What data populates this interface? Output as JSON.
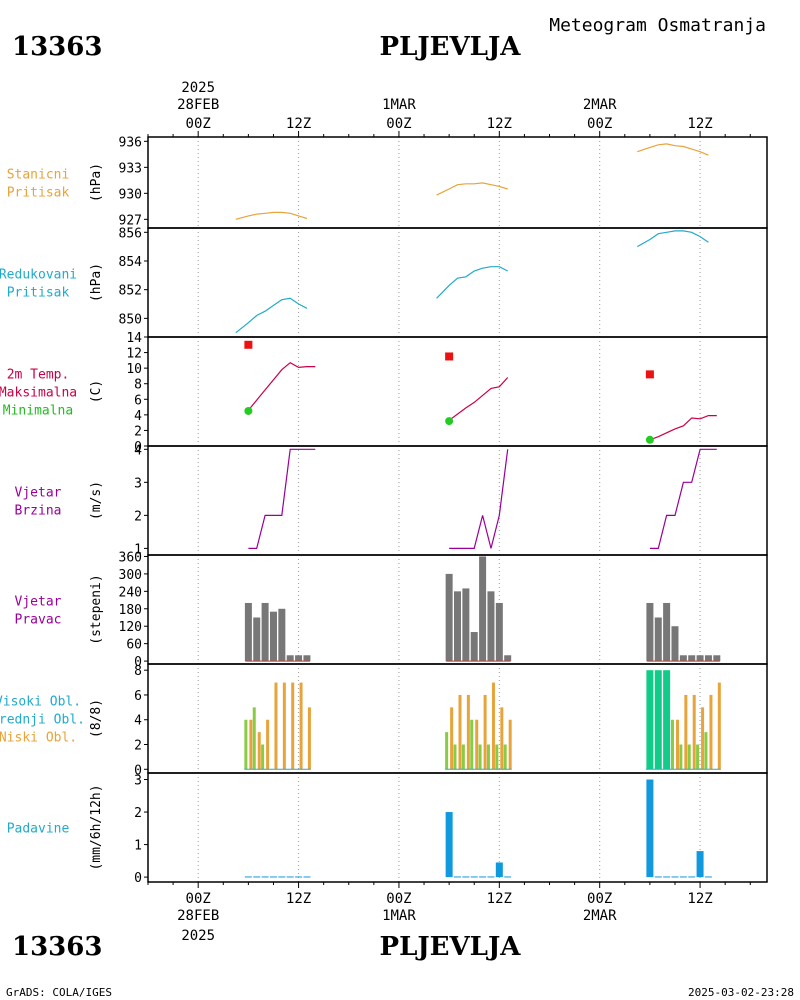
{
  "header": {
    "station_id": "13363",
    "station_name": "PLJEVLJA",
    "product": "Meteogram Osmatranja",
    "footer_left": "GrADS: COLA/IGES",
    "footer_right": "2025-03-02-23:28"
  },
  "time_axis": {
    "top_year": "2025",
    "bottom_year": "2025",
    "major": [
      {
        "date": "28FEB",
        "hour": "00Z"
      },
      {
        "date": "",
        "hour": "12Z"
      },
      {
        "date": "1MAR",
        "hour": "00Z"
      },
      {
        "date": "",
        "hour": "12Z"
      },
      {
        "date": "2MAR",
        "hour": "00Z"
      },
      {
        "date": "",
        "hour": "12Z"
      }
    ]
  },
  "chart_data": [
    {
      "id": "station_pressure",
      "type": "line",
      "title_lines": [
        "Stanicni",
        "Pritisak"
      ],
      "ylabel": "(hPa)",
      "title_color": "#e8a33a",
      "color": "#e8a33a",
      "ylim": [
        926,
        936.5
      ],
      "ticks": [
        927,
        930,
        933,
        936
      ],
      "x_unit": "hours from 28FEB 00Z",
      "series": [
        {
          "x": [
            4.5,
            6,
            7,
            8,
            9,
            10,
            11,
            12,
            13
          ],
          "values": [
            927.0,
            927.4,
            927.6,
            927.7,
            927.8,
            927.8,
            927.7,
            927.4,
            927.1
          ]
        },
        {
          "x": [
            28.5,
            30,
            31,
            32,
            33,
            34,
            35,
            36,
            37
          ],
          "values": [
            929.8,
            930.5,
            931.0,
            931.1,
            931.1,
            931.2,
            931.0,
            930.8,
            930.5
          ]
        },
        {
          "x": [
            52.5,
            54,
            55,
            56,
            57,
            58,
            59,
            60,
            61
          ],
          "values": [
            934.8,
            935.3,
            935.6,
            935.7,
            935.5,
            935.4,
            935.1,
            934.8,
            934.4
          ]
        }
      ]
    },
    {
      "id": "reduced_pressure",
      "type": "line",
      "title_lines": [
        "Redukovani",
        "Pritisak"
      ],
      "ylabel": "(hPa)",
      "title_color": "#22aacc",
      "color": "#22aacc",
      "ylim": [
        848.7,
        856.3
      ],
      "ticks": [
        850,
        852,
        854,
        856
      ],
      "x_unit": "hours from 28FEB 00Z",
      "series": [
        {
          "x": [
            4.5,
            6,
            7,
            8,
            9,
            10,
            11,
            12,
            13
          ],
          "values": [
            849.0,
            849.7,
            850.2,
            850.5,
            850.9,
            851.3,
            851.4,
            851.0,
            850.7
          ]
        },
        {
          "x": [
            28.5,
            30,
            31,
            32,
            33,
            34,
            35,
            36,
            37
          ],
          "values": [
            851.4,
            852.3,
            852.8,
            852.9,
            853.3,
            853.5,
            853.6,
            853.6,
            853.3
          ]
        },
        {
          "x": [
            52.5,
            54,
            55,
            56,
            57,
            58,
            59,
            60,
            61
          ],
          "values": [
            855.0,
            855.5,
            855.9,
            856.0,
            856.1,
            856.1,
            856.0,
            855.7,
            855.3
          ]
        }
      ]
    },
    {
      "id": "temperature",
      "type": "line",
      "title_lines": [
        "2m Temp.",
        "Maksimalna",
        "Minimalna"
      ],
      "title_colors": [
        "#cc0044",
        "#cc0044",
        "#22bb22"
      ],
      "ylabel": "(C)",
      "color": "#cc0044",
      "ylim": [
        0,
        14
      ],
      "ticks": [
        0,
        2,
        4,
        6,
        8,
        10,
        12,
        14
      ],
      "x_unit": "hours from 28FEB 00Z",
      "series": [
        {
          "x": [
            6,
            7,
            8,
            9,
            10,
            11,
            12,
            13,
            14
          ],
          "values": [
            4.6,
            5.9,
            7.2,
            8.5,
            9.8,
            10.7,
            10.1,
            10.2,
            10.2
          ]
        },
        {
          "x": [
            30,
            31,
            32,
            33,
            34,
            35,
            36,
            37
          ],
          "values": [
            3.3,
            4.1,
            4.9,
            5.6,
            6.5,
            7.4,
            7.6,
            8.8
          ]
        },
        {
          "x": [
            54,
            55,
            56,
            57,
            58,
            59,
            60,
            61,
            62
          ],
          "values": [
            0.8,
            1.2,
            1.7,
            2.2,
            2.6,
            3.6,
            3.5,
            3.9,
            3.9
          ]
        }
      ],
      "maxima": {
        "x": [
          6,
          30,
          54
        ],
        "values": [
          13.0,
          11.5,
          9.2
        ],
        "color": "#ee1111"
      },
      "minima": {
        "x": [
          6,
          30,
          54
        ],
        "values": [
          4.5,
          3.2,
          0.8
        ],
        "color": "#22cc22"
      }
    },
    {
      "id": "wind_speed",
      "type": "line",
      "title_lines": [
        "Vjetar",
        "Brzina"
      ],
      "ylabel": "(m/s)",
      "title_color": "#990099",
      "color": "#990099",
      "ylim": [
        0.8,
        4.1
      ],
      "ticks": [
        1,
        2,
        3,
        4
      ],
      "x_unit": "hours from 28FEB 00Z",
      "series": [
        {
          "x": [
            6,
            7,
            8,
            9,
            10,
            11,
            12,
            13,
            14
          ],
          "values": [
            1,
            1,
            2,
            2,
            2,
            4,
            4,
            4,
            4
          ]
        },
        {
          "x": [
            30,
            31,
            32,
            33,
            34,
            35,
            36,
            37
          ],
          "values": [
            1,
            1,
            1,
            1,
            2,
            1,
            2,
            4
          ]
        },
        {
          "x": [
            54,
            55,
            56,
            57,
            58,
            59,
            60,
            61,
            62
          ],
          "values": [
            1,
            1,
            2,
            2,
            3,
            3,
            4,
            4,
            4
          ]
        }
      ]
    },
    {
      "id": "wind_direction",
      "type": "bar",
      "title_lines": [
        "Vjetar",
        "Pravac"
      ],
      "ylabel": "(stepeni)",
      "title_color": "#990099",
      "color": "#777777",
      "ylim": [
        -10,
        365
      ],
      "ticks": [
        0,
        60,
        120,
        180,
        240,
        300,
        360
      ],
      "x_unit": "hours from 28FEB 00Z",
      "series": [
        {
          "x": [
            6,
            7,
            8,
            9,
            10,
            11,
            12,
            13
          ],
          "values": [
            200,
            150,
            200,
            170,
            180,
            20,
            20,
            20
          ]
        },
        {
          "x": [
            30,
            31,
            32,
            33,
            34,
            35,
            36,
            37
          ],
          "values": [
            300,
            240,
            250,
            100,
            360,
            240,
            200,
            20
          ]
        },
        {
          "x": [
            54,
            55,
            56,
            57,
            58,
            59,
            60,
            61,
            62
          ],
          "values": [
            200,
            150,
            200,
            120,
            20,
            20,
            20,
            20,
            20
          ]
        }
      ]
    },
    {
      "id": "clouds",
      "type": "bar",
      "title_lines": [
        "Visoki Obl.",
        "Srednji Obl.",
        "Niski Obl."
      ],
      "title_colors": [
        "#22aacc",
        "#22aacc",
        "#e8a33a"
      ],
      "ylabel": "(8/8)",
      "ylim": [
        -0.3,
        8.5
      ],
      "ticks": [
        0,
        2,
        4,
        6,
        8
      ],
      "x_unit": "hours from 28FEB 00Z",
      "series": [
        {
          "name": "Visoki Obl.",
          "color": "#11cc88",
          "x": [
            54,
            55,
            56
          ],
          "values": [
            8,
            8,
            8
          ]
        },
        {
          "name": "Srednji Obl.",
          "color": "#88cc44",
          "x": [
            6,
            7,
            8,
            30,
            31,
            32,
            33,
            34,
            35,
            36,
            37,
            57,
            58,
            59,
            60,
            61
          ],
          "values": [
            4,
            5,
            2,
            3,
            2,
            2,
            4,
            2,
            2,
            2,
            2,
            4,
            2,
            2,
            2,
            3
          ]
        },
        {
          "name": "Niski Obl.",
          "color": "#e8a33a",
          "x": [
            6,
            7,
            8,
            9,
            10,
            11,
            12,
            13,
            30,
            31,
            32,
            33,
            34,
            35,
            36,
            37,
            57,
            58,
            59,
            60,
            61,
            62
          ],
          "values": [
            4,
            3,
            4,
            7,
            7,
            7,
            7,
            5,
            5,
            6,
            6,
            4,
            6,
            7,
            5,
            4,
            4,
            6,
            6,
            5,
            6,
            7
          ]
        }
      ]
    },
    {
      "id": "precipitation",
      "type": "bar",
      "title_lines": [
        "Padavine"
      ],
      "ylabel": "(mm/6h/12h)",
      "title_color": "#22aacc",
      "color": "#1199dd",
      "ylim": [
        -0.15,
        3.2
      ],
      "ticks": [
        0,
        1,
        2,
        3
      ],
      "x_unit": "hours from 28FEB 00Z",
      "series": [
        {
          "x": [
            6,
            7,
            8,
            9,
            10,
            11,
            12,
            13,
            30,
            31,
            32,
            33,
            34,
            35,
            36,
            37,
            54,
            55,
            56,
            57,
            58,
            59,
            60,
            61
          ],
          "values": [
            0.02,
            0.02,
            0.02,
            0.02,
            0.02,
            0.02,
            0.02,
            0.02,
            2.0,
            0.02,
            0.02,
            0.02,
            0.02,
            0.02,
            0.45,
            0.02,
            3.0,
            0.02,
            0.02,
            0.02,
            0.02,
            0.02,
            0.8,
            0.02
          ]
        }
      ]
    }
  ]
}
